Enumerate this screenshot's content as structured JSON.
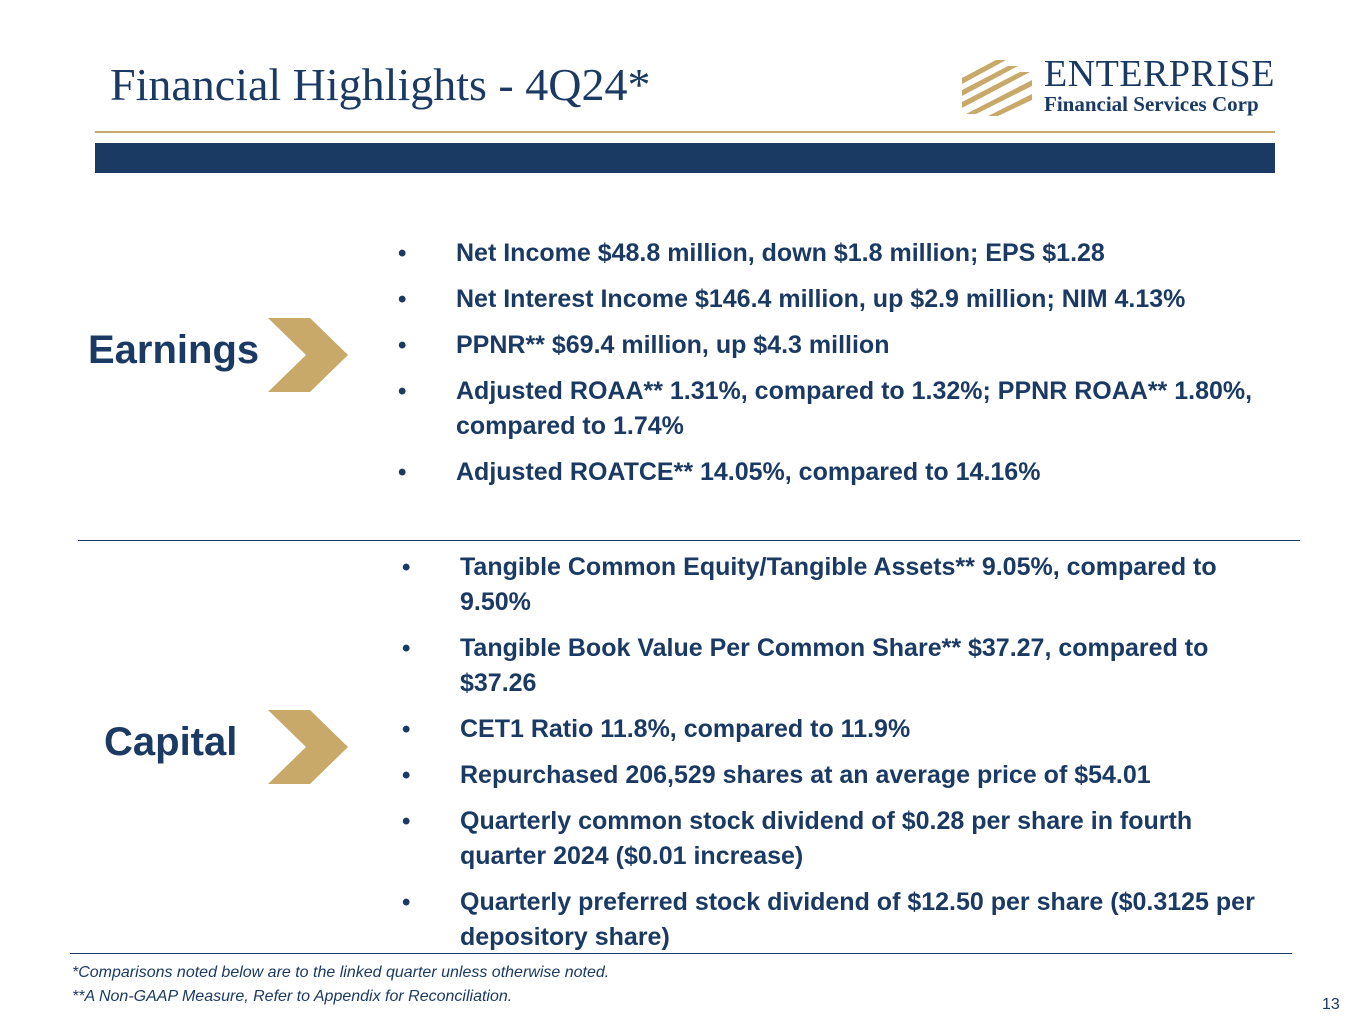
{
  "header": {
    "title": "Financial Highlights - 4Q24*",
    "logo_name": "ENTERPRISE",
    "logo_subtitle": "Financial Services Corp"
  },
  "earnings": {
    "label": "Earnings",
    "bullets": [
      "Net Income $48.8 million, down $1.8 million; EPS $1.28",
      "Net Interest Income $146.4 million, up $2.9 million; NIM 4.13%",
      "PPNR** $69.4 million, up $4.3 million",
      "Adjusted ROAA** 1.31%, compared to 1.32%; PPNR ROAA** 1.80%, compared to 1.74%",
      "Adjusted ROATCE** 14.05%, compared to 14.16%"
    ]
  },
  "capital": {
    "label": "Capital",
    "bullets": [
      "Tangible Common Equity/Tangible Assets** 9.05%, compared to 9.50%",
      "Tangible Book Value Per Common Share** $37.27, compared to $37.26",
      "CET1 Ratio 11.8%, compared to 11.9%",
      "Repurchased 206,529 shares at an average price of $54.01",
      "Quarterly common stock dividend of $0.28 per share in fourth quarter 2024 ($0.01 increase)",
      "Quarterly preferred stock dividend of $12.50 per share ($0.3125 per depository share)"
    ]
  },
  "footer": {
    "note1": "*Comparisons noted below are to the linked quarter unless otherwise noted.",
    "note2": "**A Non-GAAP Measure, Refer to Appendix for Reconciliation.",
    "page_number": "13"
  },
  "colors": {
    "navy": "#1b3a63",
    "gold": "#c8a96a"
  },
  "bullet_char": "•"
}
